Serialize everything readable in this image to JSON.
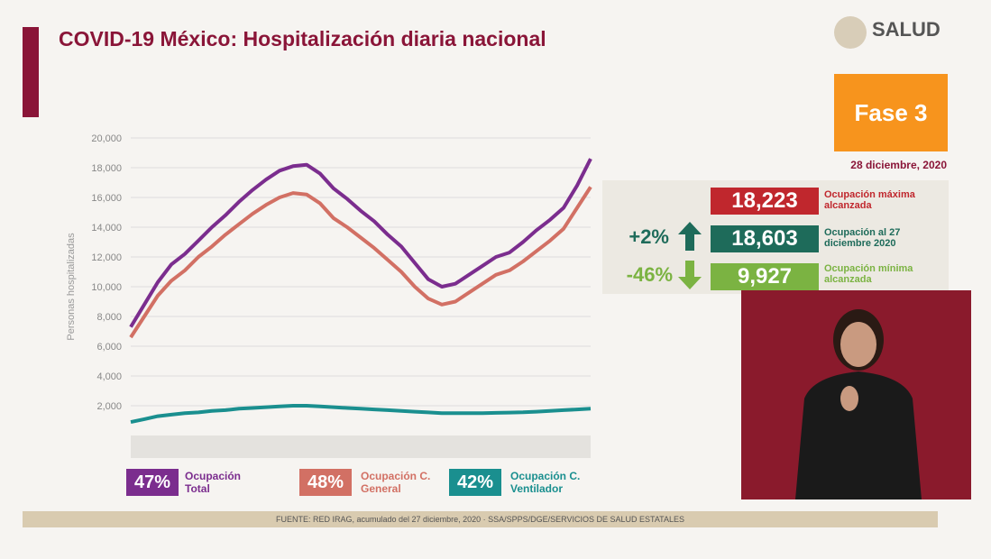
{
  "header": {
    "logo": "SALUD",
    "phase": "Fase 3",
    "date": "28 diciembre, 2020"
  },
  "stats": [
    {
      "value": "18,223",
      "label": "Ocupación máxima alcanzada"
    },
    {
      "change": "+2%",
      "value": "18,603",
      "label": "Ocupación al 27 diciembre 2020"
    },
    {
      "change": "-46%",
      "value": "9,927",
      "label": "Ocupación mínima alcanzada"
    }
  ],
  "legend_percentages": [
    "47%",
    "48%",
    "42%"
  ],
  "footer": "FUENTE: RED IRAG, acumulado del 27 diciembre, 2020 · SSA/SPPS/DGE/SERVICIOS DE SALUD ESTATALES",
  "chart_data": {
    "type": "line",
    "title": "COVID-19 México: Hospitalización diaria nacional",
    "ylabel": "Personas hospitalizadas",
    "ylim": [
      0,
      20000
    ],
    "yticks": [
      {
        "value": 2000,
        "label": "2,000"
      },
      {
        "value": 4000,
        "label": "4,000"
      },
      {
        "value": 6000,
        "label": "6,000"
      },
      {
        "value": 8000,
        "label": "8,000"
      },
      {
        "value": 10000,
        "label": "10,000"
      },
      {
        "value": 12000,
        "label": "12,000"
      },
      {
        "value": 14000,
        "label": "14,000"
      },
      {
        "value": 16000,
        "label": "16,000"
      },
      {
        "value": 18000,
        "label": "18,000"
      },
      {
        "value": 20000,
        "label": "20,000"
      }
    ],
    "grid": true,
    "series": [
      {
        "name": "Ocupación Total",
        "color": "#7b2d8e",
        "values": [
          7300,
          8800,
          10300,
          11500,
          12200,
          13100,
          14000,
          14800,
          15700,
          16500,
          17200,
          17800,
          18100,
          18200,
          17600,
          16600,
          15900,
          15100,
          14400,
          13500,
          12700,
          11600,
          10500,
          10000,
          10200,
          10800,
          11400,
          12000,
          12300,
          13000,
          13800,
          14500,
          15300,
          16800,
          18603
        ]
      },
      {
        "name": "Ocupación C. General",
        "color": "#d27064",
        "values": [
          6600,
          8000,
          9400,
          10400,
          11100,
          12000,
          12700,
          13500,
          14200,
          14900,
          15500,
          16000,
          16300,
          16200,
          15600,
          14600,
          14000,
          13300,
          12600,
          11800,
          11000,
          10000,
          9200,
          8800,
          9000,
          9600,
          10200,
          10800,
          11100,
          11700,
          12400,
          13100,
          13900,
          15300,
          16700
        ]
      },
      {
        "name": "Ocupación C. Ventilador",
        "color": "#1a8f8f",
        "values": [
          900,
          1100,
          1300,
          1400,
          1500,
          1550,
          1650,
          1700,
          1800,
          1850,
          1900,
          1950,
          2000,
          2000,
          1950,
          1900,
          1850,
          1800,
          1750,
          1700,
          1650,
          1600,
          1550,
          1500,
          1500,
          1500,
          1500,
          1520,
          1540,
          1560,
          1600,
          1650,
          1700,
          1750,
          1800
        ]
      }
    ]
  }
}
